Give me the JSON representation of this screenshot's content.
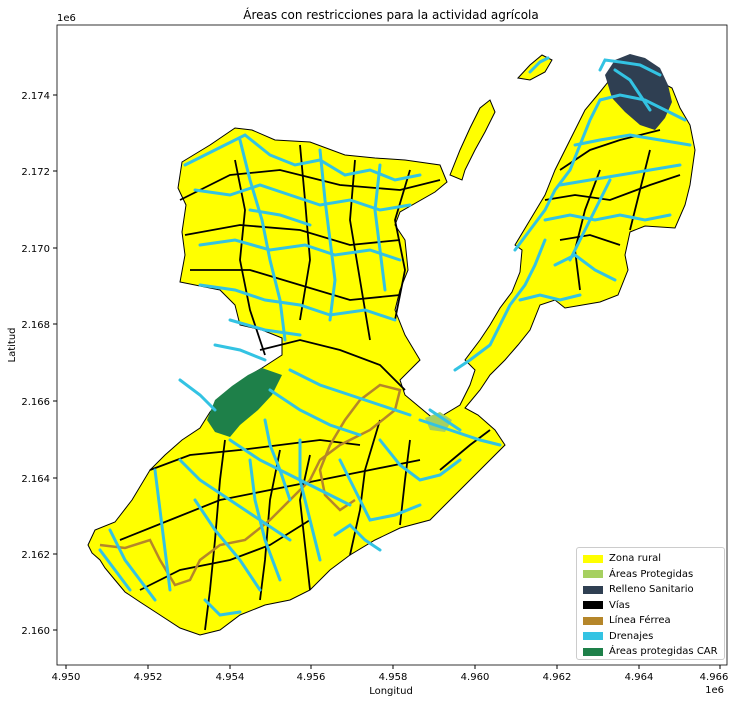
{
  "title": "Áreas con restricciones para la actividad agrícola",
  "axes": {
    "xlabel": "Longitud",
    "ylabel": "Latitud",
    "x_offset": "1e6",
    "y_offset": "1e6",
    "x_ticks": [
      "4.950",
      "4.952",
      "4.954",
      "4.956",
      "4.958",
      "4.960",
      "4.962",
      "4.964",
      "4.966"
    ],
    "y_ticks": [
      "2.160",
      "2.162",
      "2.164",
      "2.166",
      "2.168",
      "2.170",
      "2.172",
      "2.174"
    ]
  },
  "legend": {
    "items": [
      {
        "label": "Zona rural",
        "color": "#ffff00"
      },
      {
        "label": "Áreas Protegidas",
        "color": "#a6d060"
      },
      {
        "label": "Relleno Sanitario",
        "color": "#2f3f52"
      },
      {
        "label": "Vías",
        "color": "#000000"
      },
      {
        "label": "Línea Férrea",
        "color": "#b5862a"
      },
      {
        "label": "Drenajes",
        "color": "#33c3e3"
      },
      {
        "label": "Áreas protegidas CAR",
        "color": "#1e8049"
      }
    ]
  }
}
